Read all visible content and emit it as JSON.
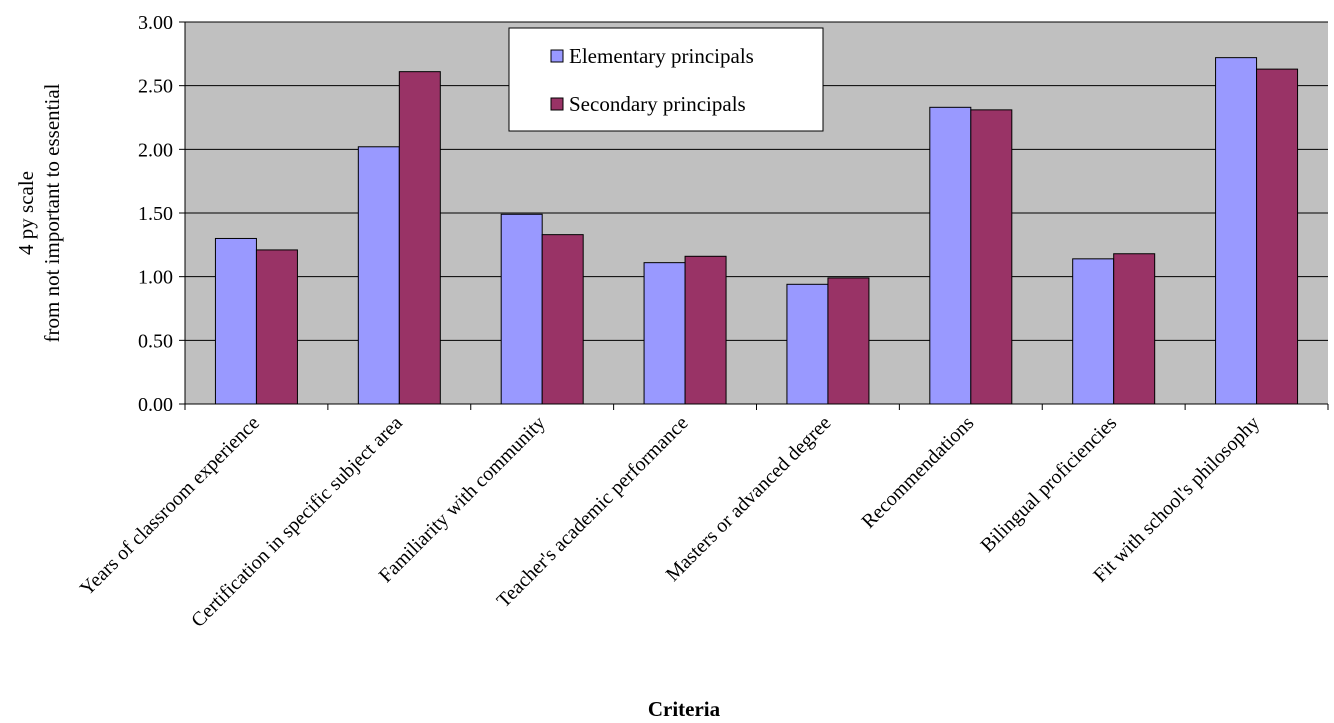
{
  "chart_data": {
    "type": "bar",
    "categories": [
      "Years of classroom experience",
      "Certification in specific subject area",
      "Familiarity with community",
      "Teacher's academic performance",
      "Masters or advanced degree",
      "Recommendations",
      "Bilingual proficiencies",
      "Fit with school's philosophy"
    ],
    "series": [
      {
        "name": "Elementary principals",
        "color": "#9999ff",
        "values": [
          1.3,
          2.02,
          1.49,
          1.11,
          0.94,
          2.33,
          1.14,
          2.72
        ]
      },
      {
        "name": "Secondary principals",
        "color": "#993366",
        "values": [
          1.21,
          2.61,
          1.33,
          1.16,
          0.99,
          2.31,
          1.18,
          2.63
        ]
      }
    ],
    "xlabel": "Criteria",
    "ylabel_lines": [
      "4 py scale",
      "from not important to essential"
    ],
    "ylim": [
      0,
      3
    ],
    "yticks": [
      "0.00",
      "0.50",
      "1.00",
      "1.50",
      "2.00",
      "2.50",
      "3.00"
    ],
    "plot_background": "#c0c0c0",
    "grid": true,
    "legend_position": "top-center"
  }
}
